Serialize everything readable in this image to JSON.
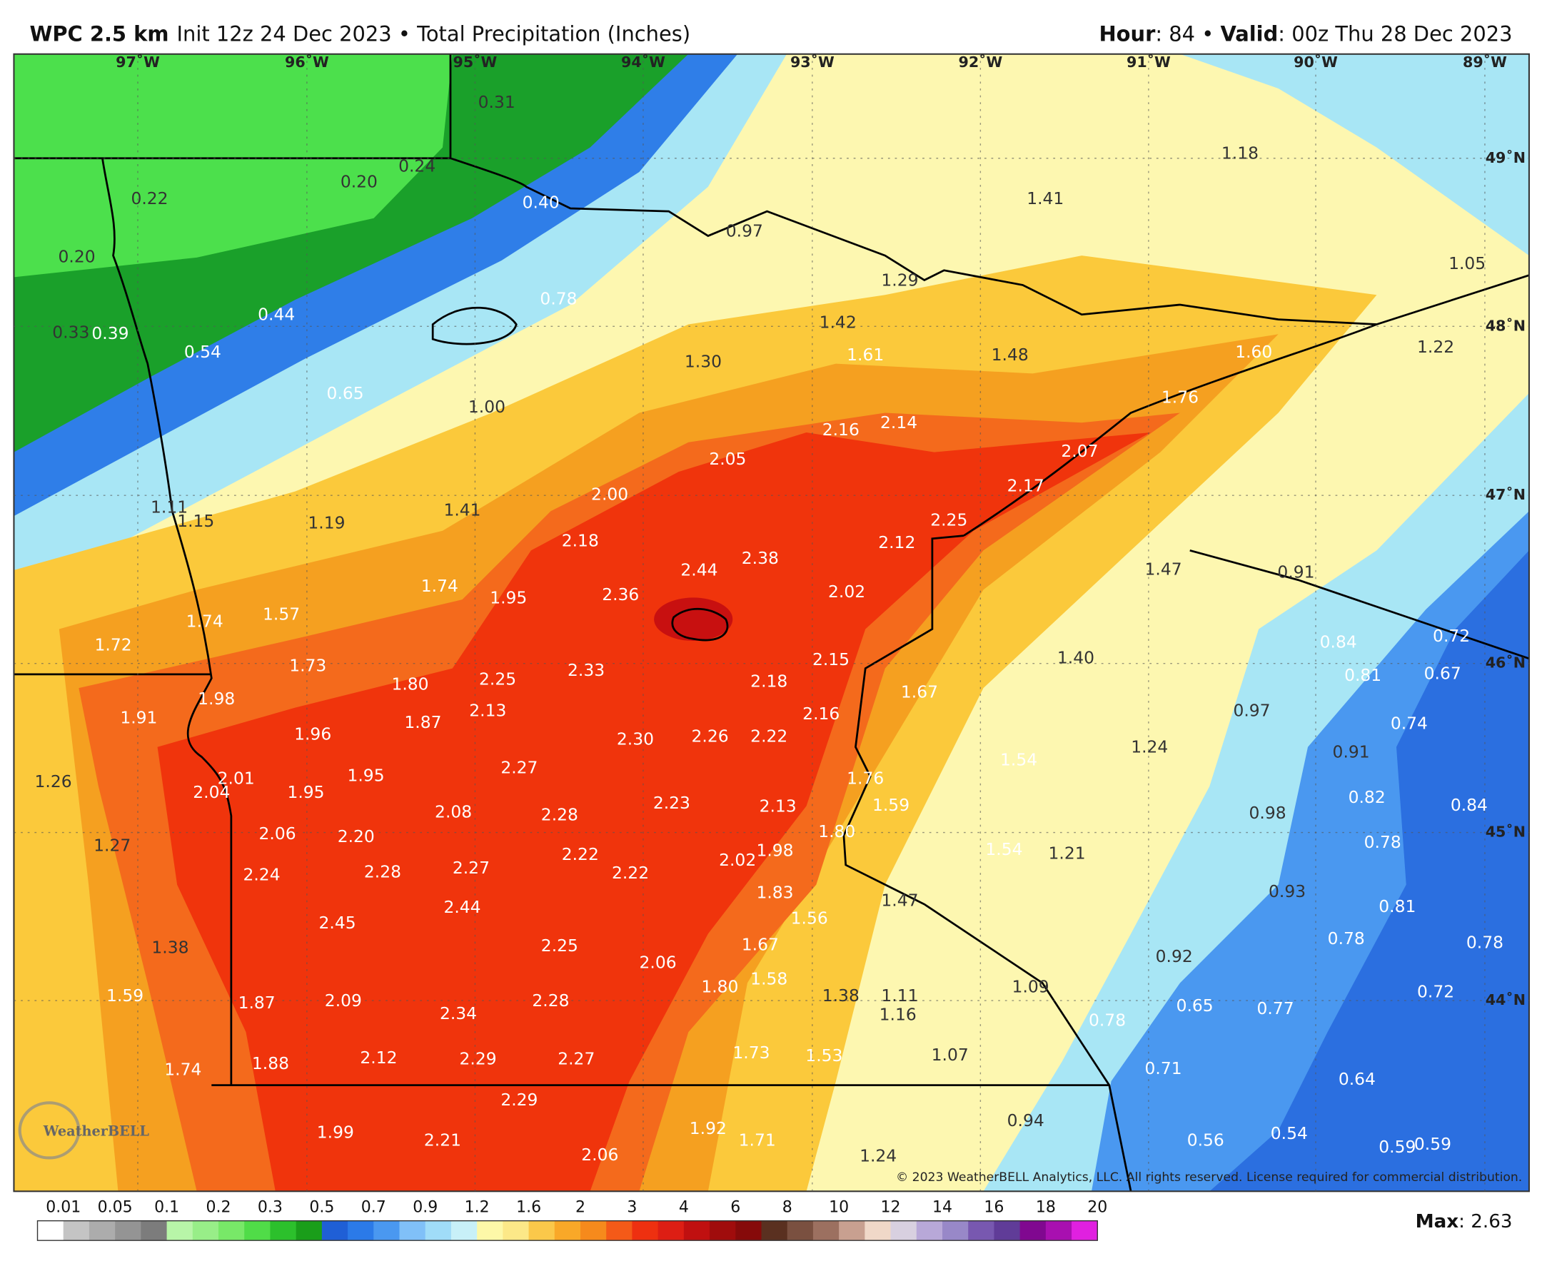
{
  "header": {
    "model": "WPC 2.5 km",
    "run": "Init 12z 24 Dec 2023 • Total Precipitation (Inches)",
    "hour_key": "Hour",
    "hour": ": 84 • ",
    "valid_key": "Valid",
    "valid": ": 00z Thu 28 Dec 2023"
  },
  "longitudes": [
    "97˚W",
    "96˚W",
    "95˚W",
    "94˚W",
    "93˚W",
    "92˚W",
    "91˚W",
    "90˚W",
    "89˚W"
  ],
  "latitudes": [
    "49˚N",
    "48˚N",
    "47˚N",
    "46˚N",
    "45˚N",
    "44˚N"
  ],
  "labels": [
    "0.22",
    "0.20",
    "0.24",
    "0.31",
    "0.40",
    "0.20",
    "0.97",
    "0.78",
    "0.44",
    "0.33",
    "0.39",
    "0.54",
    "0.65",
    "1.00",
    "1.18",
    "1.41",
    "1.29",
    "1.05",
    "1.42",
    "1.61",
    "1.30",
    "1.48",
    "1.60",
    "1.22",
    "1.76",
    "2.16",
    "2.14",
    "2.05",
    "2.07",
    "2.17",
    "2.00",
    "1.11",
    "1.15",
    "1.19",
    "1.41",
    "2.25",
    "2.18",
    "2.12",
    "2.38",
    "2.44",
    "1.47",
    "0.91",
    "1.74",
    "1.95",
    "2.36",
    "2.02",
    "1.74",
    "1.57",
    "1.72",
    "0.84",
    "0.72",
    "2.15",
    "1.40",
    "1.73",
    "2.33",
    "2.25",
    "1.80",
    "2.18",
    "1.67",
    "0.81",
    "0.67",
    "1.91",
    "1.98",
    "2.13",
    "1.87",
    "2.16",
    "0.97",
    "0.74",
    "1.96",
    "2.30",
    "2.26",
    "2.22",
    "1.24",
    "0.91",
    "1.54",
    "1.26",
    "2.01",
    "2.04",
    "1.95",
    "1.95",
    "2.27",
    "1.76",
    "0.82",
    "0.84",
    "2.08",
    "2.28",
    "2.23",
    "2.13",
    "1.59",
    "0.98",
    "2.06",
    "2.20",
    "1.80",
    "0.78",
    "1.27",
    "2.22",
    "1.98",
    "2.02",
    "1.54",
    "1.21",
    "2.24",
    "2.28",
    "2.27",
    "2.22",
    "1.83",
    "0.93",
    "1.47",
    "0.81",
    "2.45",
    "2.44",
    "1.56",
    "1.38",
    "2.25",
    "1.67",
    "0.78",
    "0.78",
    "2.06",
    "0.92",
    "1.80",
    "1.58",
    "1.09",
    "1.59",
    "1.87",
    "2.09",
    "2.28",
    "1.38",
    "1.11",
    "0.72",
    "2.34",
    "1.16",
    "0.78",
    "0.65",
    "0.77",
    "1.73",
    "1.53",
    "1.07",
    "1.74",
    "1.88",
    "2.12",
    "2.29",
    "2.27",
    "0.71",
    "0.64",
    "2.29",
    "1.92",
    "0.94",
    "1.99",
    "2.21",
    "1.71",
    "0.56",
    "0.54",
    "0.59",
    "0.59",
    "2.06",
    "1.24"
  ],
  "colorbar": {
    "labels": [
      "0.01",
      "0.05",
      "0.1",
      "0.2",
      "0.3",
      "0.5",
      "0.7",
      "0.9",
      "1.2",
      "1.6",
      "2",
      "3",
      "4",
      "6",
      "8",
      "10",
      "12",
      "14",
      "16",
      "18",
      "20"
    ],
    "colors": [
      "#ffffff",
      "#c4c4c4",
      "#acacac",
      "#949494",
      "#7c7c7c",
      "#b8f5a8",
      "#98ee88",
      "#78e868",
      "#50dc48",
      "#2cc02c",
      "#1a9e1a",
      "#1f5fd6",
      "#2b7ae8",
      "#4a98f0",
      "#80c0f8",
      "#a0dcf8",
      "#c8f0f8",
      "#fdf8a8",
      "#fce888",
      "#fbc84a",
      "#f9a828",
      "#f68a1c",
      "#f45a18",
      "#ee3010",
      "#dd1e14",
      "#c01010",
      "#a00c0c",
      "#860a0a",
      "#5a3020",
      "#7a5040",
      "#9c7060",
      "#c8a090",
      "#f0d8c8",
      "#d8d0e0",
      "#b8a8d8",
      "#9888c8",
      "#7858b0",
      "#603c98",
      "#800890",
      "#a810b0",
      "#e020e0"
    ]
  },
  "max": {
    "key": "Max",
    "value": ": 2.63"
  },
  "copyright": "© 2023 WeatherBELL Analytics, LLC. All rights reserved. License required for commercial distribution.",
  "logo": "WeatherBELL"
}
